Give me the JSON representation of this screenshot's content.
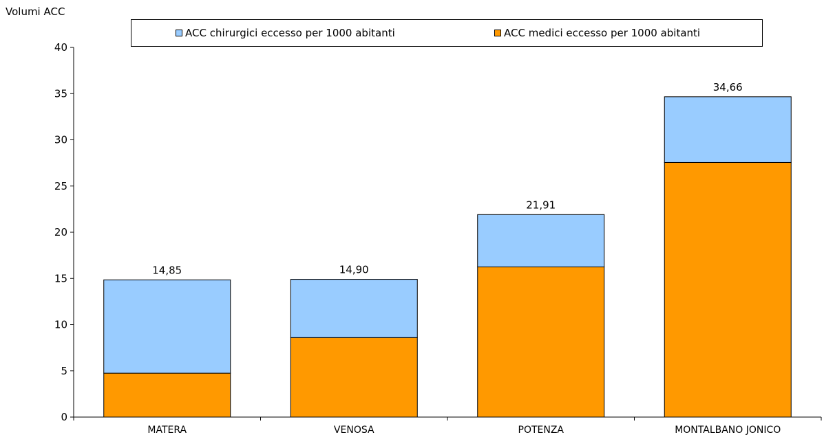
{
  "chart_data": {
    "type": "bar",
    "stacked": true,
    "title": "",
    "ylabel": "Volumi ACC",
    "xlabel": "",
    "ylim": [
      0,
      40
    ],
    "yticks": [
      0,
      5,
      10,
      15,
      20,
      25,
      30,
      35,
      40
    ],
    "categories": [
      "MATERA",
      "VENOSA",
      "POTENZA",
      "MONTALBANO JONICO"
    ],
    "series": [
      {
        "name": "ACC medici eccesso per 1000 abitanti",
        "color": "#FF9900",
        "values": [
          4.75,
          8.6,
          16.25,
          27.55
        ]
      },
      {
        "name": "ACC chirurgici eccesso per 1000 abitanti",
        "color": "#99CCFF",
        "values": [
          10.1,
          6.3,
          5.66,
          7.11
        ]
      }
    ],
    "totals": [
      "14,85",
      "14,90",
      "21,91",
      "34,66"
    ],
    "legend": {
      "position": "top",
      "items": [
        "ACC chirurgici eccesso per 1000 abitanti",
        "ACC medici eccesso per 1000 abitanti"
      ]
    },
    "grid": false
  }
}
